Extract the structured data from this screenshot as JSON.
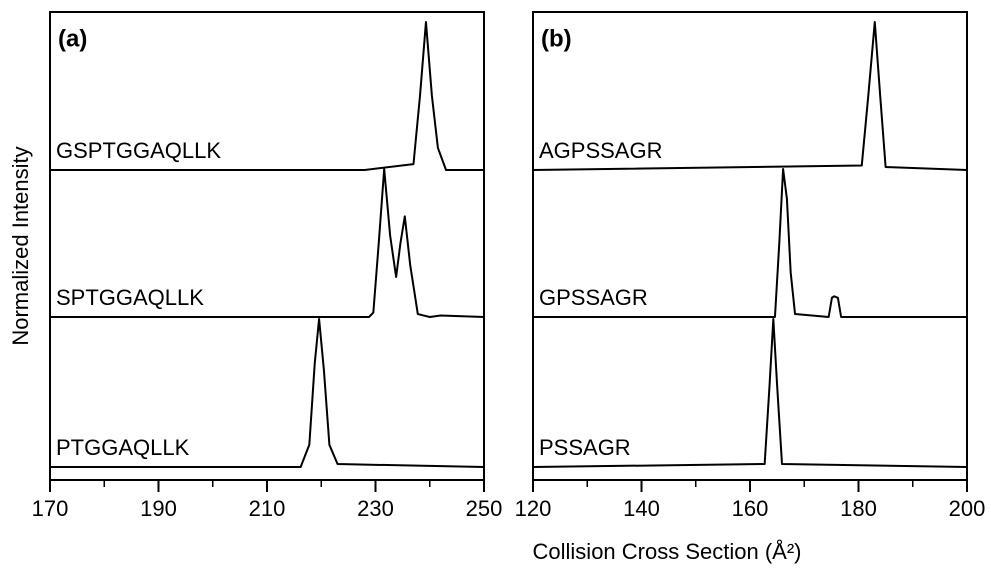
{
  "chart_data": [
    {
      "type": "line",
      "panel_label": "(a)",
      "xlim": [
        170,
        250
      ],
      "xticks": [
        170,
        190,
        210,
        230,
        250
      ],
      "xminor_ticks": [
        180,
        200,
        220,
        240
      ],
      "color": "#000000",
      "series": [
        {
          "name": "GSPTGGAQLLK",
          "x": [
            170,
            228,
            237,
            238.2,
            239.3,
            240.4,
            241.5,
            243,
            250
          ],
          "values": [
            0,
            0,
            0.04,
            0.5,
            1,
            0.5,
            0.15,
            0,
            0
          ]
        },
        {
          "name": "SPTGGAQLLK",
          "x": [
            170,
            228.8,
            229.6,
            230.6,
            231.6,
            232.7,
            233.8,
            234.6,
            235.4,
            236.4,
            237.8,
            240,
            242,
            250
          ],
          "values": [
            0,
            0,
            0.03,
            0.5,
            1,
            0.55,
            0.27,
            0.5,
            0.68,
            0.35,
            0.02,
            0,
            0.01,
            0
          ]
        },
        {
          "name": "PTGGAQLLK",
          "x": [
            170,
            216.2,
            217.8,
            218.8,
            219.6,
            220.5,
            221.5,
            223,
            250
          ],
          "values": [
            0,
            0,
            0.15,
            0.7,
            1,
            0.65,
            0.15,
            0.02,
            0
          ]
        }
      ]
    },
    {
      "type": "line",
      "panel_label": "(b)",
      "xlim": [
        120,
        200
      ],
      "xticks": [
        120,
        140,
        160,
        180,
        200
      ],
      "xminor_ticks": [
        130,
        150,
        170,
        190
      ],
      "color": "#000000",
      "series": [
        {
          "name": "AGPSSAGR",
          "x": [
            120,
            180.6,
            181.8,
            183,
            184,
            185,
            200
          ],
          "values": [
            0,
            0.03,
            0.5,
            1,
            0.5,
            0.02,
            0
          ]
        },
        {
          "name": "GPSSAGR",
          "x": [
            120,
            164.6,
            165.4,
            166.1,
            166.8,
            167.5,
            168.3,
            174.5,
            175.1,
            175.5,
            176.2,
            176.8,
            200
          ],
          "values": [
            0,
            0,
            0.5,
            1,
            0.8,
            0.3,
            0.02,
            0,
            0.13,
            0.14,
            0.13,
            0,
            0
          ]
        },
        {
          "name": "PSSAGR",
          "x": [
            120,
            162.7,
            163.6,
            164.3,
            165,
            165.9,
            200
          ],
          "values": [
            0,
            0.02,
            0.55,
            1,
            0.55,
            0.02,
            0
          ]
        }
      ]
    }
  ],
  "x_label": "Collision Cross Section (Å²)",
  "y_label": "Normalized Intensity"
}
